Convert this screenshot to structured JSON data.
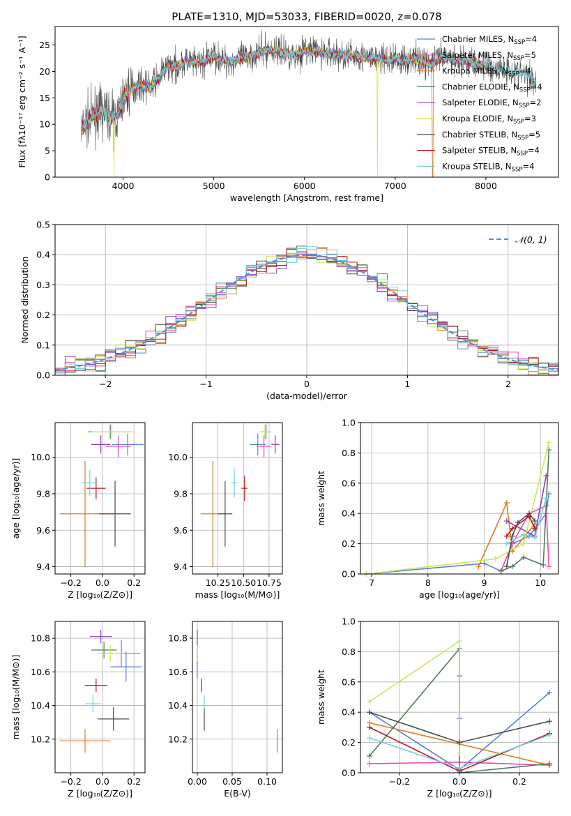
{
  "title": "PLATE=1310, MJD=53033, FIBERID=0020, z=0.078",
  "colors": {
    "chabrier_miles": "#5b7fd6",
    "salpeter_miles": "#e64bb0",
    "kroupa_miles": "#e07a1f",
    "chabrier_elodie": "#4f7a56",
    "salpeter_elodie": "#8e3fb8",
    "kroupa_elodie": "#c9e84f",
    "chabrier_stelib": "#4a4a4a",
    "salpeter_stelib": "#b5161a",
    "kroupa_stelib": "#6fd0e0",
    "normal_curve": "#5a8ad8"
  },
  "models": [
    {
      "key": "chabrier_miles",
      "pre": "Chabrier MILES, N",
      "n": "4"
    },
    {
      "key": "salpeter_miles",
      "pre": "Salpeter MILES, N",
      "n": "5"
    },
    {
      "key": "kroupa_miles",
      "pre": "Kroupa MILES, N",
      "n": "4"
    },
    {
      "key": "chabrier_elodie",
      "pre": "Chabrier ELODIE, N",
      "n": "4"
    },
    {
      "key": "salpeter_elodie",
      "pre": "Salpeter ELODIE, N",
      "n": "2"
    },
    {
      "key": "kroupa_elodie",
      "pre": "Kroupa ELODIE, N",
      "n": "3"
    },
    {
      "key": "chabrier_stelib",
      "pre": "Chabrier STELIB, N",
      "n": "5"
    },
    {
      "key": "salpeter_stelib",
      "pre": "Salpeter STELIB, N",
      "n": "4"
    },
    {
      "key": "kroupa_stelib",
      "pre": "Kroupa STELIB, N",
      "n": "4"
    }
  ],
  "legend_sub": "SSP",
  "chart_data": [
    {
      "id": "spectrum",
      "type": "line",
      "xlabel": "wavelength [Angstrom, rest frame]",
      "ylabel": "Flux [fλ10⁻¹⁷ erg cm⁻² s⁻¹ A⁻¹]",
      "xlim": [
        3250,
        8800
      ],
      "ylim": [
        0,
        28.5
      ],
      "xticks": [
        4000,
        5000,
        6000,
        7000,
        8000
      ],
      "yticks": [
        0,
        5,
        10,
        15,
        20,
        25
      ],
      "x": [
        3540,
        3600,
        3700,
        3800,
        3900,
        3950,
        4000,
        4050,
        4100,
        4200,
        4300,
        4400,
        4500,
        4600,
        4700,
        4800,
        4900,
        5000,
        5100,
        5200,
        5300,
        5400,
        5500,
        5600,
        5700,
        5800,
        5900,
        6000,
        6100,
        6200,
        6300,
        6400,
        6500,
        6600,
        6700,
        6800,
        6900,
        7000,
        7100,
        7200,
        7300,
        7400,
        7500,
        7600,
        7700,
        7800,
        7900,
        8000,
        8100,
        8200,
        8300,
        8400,
        8500,
        8550
      ],
      "flux": [
        9.0,
        10.5,
        12.0,
        12.5,
        11.0,
        12.0,
        15.0,
        16.0,
        17.0,
        17.5,
        17.0,
        19.0,
        21.0,
        21.0,
        22.0,
        21.5,
        22.0,
        23.0,
        22.0,
        22.0,
        22.5,
        23.0,
        23.5,
        24.0,
        24.0,
        23.5,
        23.0,
        24.0,
        24.0,
        23.5,
        23.5,
        23.0,
        23.0,
        23.0,
        22.5,
        22.5,
        22.0,
        22.5,
        22.0,
        22.5,
        22.0,
        21.5,
        22.5,
        22.5,
        22.0,
        22.0,
        21.5,
        21.0,
        20.5,
        20.5,
        20.0,
        19.5,
        19.0,
        18.5
      ]
    },
    {
      "id": "residuals",
      "type": "line",
      "xlabel": "(data-model)/error",
      "ylabel": "Normed distribution",
      "xlim": [
        -2.5,
        2.5
      ],
      "ylim": [
        0,
        0.5
      ],
      "xticks": [
        -2,
        -1,
        0,
        1,
        2
      ],
      "yticks": [
        0.0,
        0.1,
        0.2,
        0.3,
        0.4,
        0.5
      ],
      "bin_width": 0.1,
      "series_name": "𝒩(0, 1)",
      "legend_placement": "upper right"
    },
    {
      "id": "age_vs_Z",
      "type": "scatter",
      "xlabel": "Z [log₁₀(Z/Z⊙)]",
      "ylabel": "age  [log₁₀(age/yr)]",
      "xlim": [
        -0.3,
        0.27
      ],
      "ylim": [
        9.36,
        10.19
      ],
      "xticks": [
        -0.2,
        0.0,
        0.2
      ],
      "yticks": [
        9.4,
        9.6,
        9.8,
        10.0
      ],
      "points": [
        {
          "key": "chabrier_miles",
          "x": 0.16,
          "y": 10.07,
          "xerr": 0.1,
          "yerr": 0.06
        },
        {
          "key": "salpeter_miles",
          "x": 0.1,
          "y": 10.06,
          "xerr": 0.08,
          "yerr": 0.06
        },
        {
          "key": "kroupa_miles",
          "x": -0.11,
          "y": 9.69,
          "xerr": 0.16,
          "yerr": 0.29
        },
        {
          "key": "chabrier_elodie",
          "x": 0.05,
          "y": 10.14,
          "xerr": 0.14,
          "yerr": 0.04
        },
        {
          "key": "salpeter_elodie",
          "x": -0.01,
          "y": 10.07,
          "xerr": 0.06,
          "yerr": 0.05
        },
        {
          "key": "kroupa_elodie",
          "x": 0.06,
          "y": 10.14,
          "xerr": 0.13,
          "yerr": 0.04
        },
        {
          "key": "chabrier_stelib",
          "x": 0.08,
          "y": 9.69,
          "xerr": 0.1,
          "yerr": 0.18
        },
        {
          "key": "salpeter_stelib",
          "x": -0.04,
          "y": 9.83,
          "xerr": 0.06,
          "yerr": 0.06
        },
        {
          "key": "kroupa_stelib",
          "x": -0.08,
          "y": 9.86,
          "xerr": 0.05,
          "yerr": 0.07
        }
      ]
    },
    {
      "id": "age_vs_mass",
      "type": "scatter",
      "xlabel": "mass [log₁₀(M/M⊙)]",
      "xlim": [
        10.0,
        10.88
      ],
      "ylim": [
        9.36,
        10.19
      ],
      "xticks": [
        10.25,
        10.5,
        10.75
      ],
      "yticks": [
        9.4,
        9.6,
        9.8,
        10.0
      ],
      "points": [
        {
          "key": "chabrier_miles",
          "x": 10.64,
          "y": 10.07,
          "xerr": 0.08,
          "yerr": 0.06
        },
        {
          "key": "salpeter_miles",
          "x": 10.7,
          "y": 10.06,
          "xerr": 0.07,
          "yerr": 0.06
        },
        {
          "key": "kroupa_miles",
          "x": 10.2,
          "y": 9.69,
          "xerr": 0.12,
          "yerr": 0.29
        },
        {
          "key": "chabrier_elodie",
          "x": 10.72,
          "y": 10.14,
          "xerr": 0.05,
          "yerr": 0.04
        },
        {
          "key": "salpeter_elodie",
          "x": 10.81,
          "y": 10.07,
          "xerr": 0.04,
          "yerr": 0.05
        },
        {
          "key": "kroupa_elodie",
          "x": 10.71,
          "y": 10.14,
          "xerr": 0.06,
          "yerr": 0.04
        },
        {
          "key": "chabrier_stelib",
          "x": 10.32,
          "y": 9.69,
          "xerr": 0.07,
          "yerr": 0.18
        },
        {
          "key": "salpeter_stelib",
          "x": 10.51,
          "y": 9.83,
          "xerr": 0.03,
          "yerr": 0.07
        },
        {
          "key": "kroupa_stelib",
          "x": 10.41,
          "y": 9.86,
          "xerr": 0.03,
          "yerr": 0.08
        }
      ]
    },
    {
      "id": "massweight_vs_age",
      "type": "line",
      "xlabel": "age  [log₁₀(age/yr)]",
      "ylabel": "mass weight",
      "xlim": [
        6.8,
        10.32
      ],
      "ylim": [
        0,
        1.0
      ],
      "xticks": [
        7,
        8,
        9,
        10
      ],
      "yticks": [
        0.0,
        0.2,
        0.4,
        0.6,
        0.8,
        1.0
      ],
      "series": [
        {
          "key": "chabrier_miles",
          "x": [
            6.9,
            9.0,
            9.3,
            9.5,
            9.8,
            10.1,
            10.15
          ],
          "y": [
            0.0,
            0.07,
            0.02,
            0.2,
            0.25,
            0.4,
            0.53
          ]
        },
        {
          "key": "salpeter_miles",
          "x": [
            9.3,
            9.5,
            9.8,
            10.1,
            10.15
          ],
          "y": [
            0.02,
            0.2,
            0.4,
            0.45,
            0.05
          ]
        },
        {
          "key": "kroupa_miles",
          "x": [
            8.9,
            9.4,
            9.5,
            9.9
          ],
          "y": [
            0.05,
            0.47,
            0.15,
            0.33
          ]
        },
        {
          "key": "chabrier_elodie",
          "x": [
            9.3,
            9.5,
            9.7,
            10.05,
            10.15
          ],
          "y": [
            0.02,
            0.05,
            0.11,
            0.06,
            0.82
          ]
        },
        {
          "key": "salpeter_elodie",
          "x": [
            9.4,
            9.9,
            10.1
          ],
          "y": [
            0.35,
            0.25,
            0.65
          ]
        },
        {
          "key": "kroupa_elodie",
          "x": [
            6.9,
            9.2,
            9.7,
            10.15
          ],
          "y": [
            0.0,
            0.1,
            0.2,
            0.87
          ]
        },
        {
          "key": "chabrier_stelib",
          "x": [
            9.4,
            9.5,
            9.6,
            9.8,
            9.9
          ],
          "y": [
            0.05,
            0.25,
            0.34,
            0.4,
            0.35
          ]
        },
        {
          "key": "salpeter_stelib",
          "x": [
            9.4,
            9.5,
            9.8,
            9.9
          ],
          "y": [
            0.25,
            0.3,
            0.38,
            0.3
          ]
        },
        {
          "key": "kroupa_stelib",
          "x": [
            9.4,
            9.7,
            9.9,
            10.1
          ],
          "y": [
            0.2,
            0.26,
            0.24,
            0.5
          ]
        }
      ]
    },
    {
      "id": "mass_vs_Z",
      "type": "scatter",
      "xlabel": "Z [log₁₀(Z/Z⊙)]",
      "ylabel": "mass [log₁₀(M/M⊙)]",
      "xlim": [
        -0.3,
        0.27
      ],
      "ylim": [
        10.0,
        10.9
      ],
      "xticks": [
        -0.2,
        0.0,
        0.2
      ],
      "yticks": [
        10.2,
        10.4,
        10.6,
        10.8
      ],
      "points": [
        {
          "key": "chabrier_miles",
          "x": 0.15,
          "y": 10.63,
          "xerr": 0.1,
          "yerr": 0.09
        },
        {
          "key": "salpeter_miles",
          "x": 0.12,
          "y": 10.71,
          "xerr": 0.12,
          "yerr": 0.08
        },
        {
          "key": "kroupa_miles",
          "x": -0.11,
          "y": 10.19,
          "xerr": 0.16,
          "yerr": 0.07
        },
        {
          "key": "chabrier_elodie",
          "x": 0.01,
          "y": 10.73,
          "xerr": 0.08,
          "yerr": 0.05
        },
        {
          "key": "salpeter_elodie",
          "x": -0.01,
          "y": 10.81,
          "xerr": 0.07,
          "yerr": 0.04
        },
        {
          "key": "kroupa_elodie",
          "x": 0.05,
          "y": 10.71,
          "xerr": 0.08,
          "yerr": 0.05
        },
        {
          "key": "chabrier_stelib",
          "x": 0.07,
          "y": 10.32,
          "xerr": 0.1,
          "yerr": 0.07
        },
        {
          "key": "salpeter_stelib",
          "x": -0.04,
          "y": 10.52,
          "xerr": 0.07,
          "yerr": 0.04
        },
        {
          "key": "kroupa_stelib",
          "x": -0.06,
          "y": 10.41,
          "xerr": 0.05,
          "yerr": 0.05
        }
      ]
    },
    {
      "id": "mass_vs_ebv",
      "type": "scatter",
      "xlabel": "E(B-V)",
      "xlim": [
        -0.007,
        0.122
      ],
      "ylim": [
        10.0,
        10.9
      ],
      "xticks": [
        0.0,
        0.05,
        0.1
      ],
      "yticks": [
        10.2,
        10.4,
        10.6,
        10.8
      ],
      "points": [
        {
          "key": "chabrier_miles",
          "x": 0.0,
          "y": 10.63,
          "xerr": 0,
          "yerr": 0.07
        },
        {
          "key": "salpeter_miles",
          "x": 0.0,
          "y": 10.71,
          "xerr": 0,
          "yerr": 0.06
        },
        {
          "key": "kroupa_miles",
          "x": 0.115,
          "y": 10.19,
          "xerr": 0,
          "yerr": 0.07
        },
        {
          "key": "chabrier_elodie",
          "x": 0.0,
          "y": 10.73,
          "xerr": 0,
          "yerr": 0.05
        },
        {
          "key": "salpeter_elodie",
          "x": 0.0,
          "y": 10.81,
          "xerr": 0,
          "yerr": 0.04
        },
        {
          "key": "kroupa_elodie",
          "x": 0.0,
          "y": 10.71,
          "xerr": 0,
          "yerr": 0.05
        },
        {
          "key": "chabrier_stelib",
          "x": 0.01,
          "y": 10.32,
          "xerr": 0,
          "yerr": 0.07
        },
        {
          "key": "salpeter_stelib",
          "x": 0.006,
          "y": 10.52,
          "xerr": 0,
          "yerr": 0.04
        },
        {
          "key": "kroupa_stelib",
          "x": 0.01,
          "y": 10.42,
          "xerr": 0,
          "yerr": 0.04
        }
      ]
    },
    {
      "id": "massweight_vs_Z",
      "type": "line",
      "xlabel": "Z [log₁₀(Z/Z⊙)]",
      "ylabel": "mass weight",
      "xlim": [
        -0.33,
        0.33
      ],
      "ylim": [
        0,
        1.0
      ],
      "xticks": [
        -0.2,
        0.0,
        0.2
      ],
      "yticks": [
        0.0,
        0.2,
        0.4,
        0.6,
        0.8,
        1.0
      ],
      "series": [
        {
          "key": "chabrier_miles",
          "x": [
            -0.3,
            0.0,
            0.3
          ],
          "y": [
            0.4,
            0.02,
            0.53
          ]
        },
        {
          "key": "salpeter_miles",
          "x": [
            -0.3,
            0.0,
            0.3
          ],
          "y": [
            0.06,
            0.07,
            0.05
          ]
        },
        {
          "key": "kroupa_miles",
          "x": [
            -0.3,
            0.3
          ],
          "y": [
            0.33,
            0.05
          ]
        },
        {
          "key": "chabrier_elodie",
          "x": [
            -0.3,
            0.0,
            0.0,
            0.3
          ],
          "y": [
            0.11,
            0.82,
            0.0,
            0.06
          ]
        },
        {
          "key": "salpeter_elodie",
          "x": [
            0.0,
            0.0
          ],
          "y": [
            0.36,
            0.64
          ]
        },
        {
          "key": "kroupa_elodie",
          "x": [
            -0.3,
            0.0,
            0.0
          ],
          "y": [
            0.47,
            0.87,
            0.13
          ]
        },
        {
          "key": "chabrier_stelib",
          "x": [
            -0.3,
            0.0,
            0.3
          ],
          "y": [
            0.4,
            0.2,
            0.34
          ]
        },
        {
          "key": "salpeter_stelib",
          "x": [
            -0.3,
            0.0,
            0.3
          ],
          "y": [
            0.3,
            0.01,
            0.26
          ]
        },
        {
          "key": "kroupa_stelib",
          "x": [
            -0.3,
            0.0,
            0.3
          ],
          "y": [
            0.23,
            0.03,
            0.25
          ]
        }
      ]
    }
  ]
}
